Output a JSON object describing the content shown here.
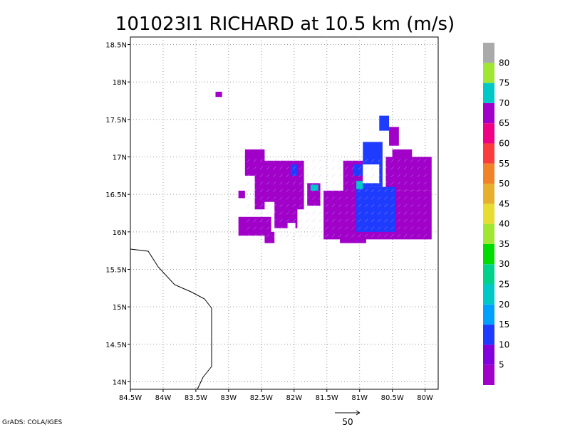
{
  "title": "101023I1 RICHARD at 10.5 km (m/s)",
  "credit": "GrADS: COLA/IGES",
  "reference_vector": {
    "label": "50"
  },
  "map": {
    "x_ticks": [
      "84.5W",
      "84W",
      "83.5W",
      "83W",
      "82.5W",
      "82W",
      "81.5W",
      "81W",
      "80.5W",
      "80W"
    ],
    "y_ticks": [
      "18.5N",
      "18N",
      "17.5N",
      "17N",
      "16.5N",
      "16N",
      "15.5N",
      "15N",
      "14.5N",
      "14N"
    ],
    "lon_range": [
      -84.5,
      -79.8
    ],
    "lat_range": [
      13.9,
      18.6
    ],
    "grid": true
  },
  "colorbar": {
    "labels": [
      "5",
      "10",
      "15",
      "20",
      "25",
      "30",
      "35",
      "40",
      "45",
      "50",
      "55",
      "60",
      "65",
      "70",
      "75",
      "80"
    ],
    "colors": [
      "#a000c8",
      "#8200dc",
      "#1e3cff",
      "#00a0ff",
      "#00c8c8",
      "#00d28c",
      "#00dc00",
      "#a0e632",
      "#e6dc32",
      "#e6af2d",
      "#f08228",
      "#fa3c3c",
      "#f00082",
      "#a000c8",
      "#00c8c8",
      "#a0e632",
      "#aaaaaa"
    ]
  },
  "chart_data": {
    "type": "heatmap",
    "title": "101023I1 RICHARD at 10.5 km (m/s)",
    "x_axis": {
      "ticks": [
        "84.5W",
        "84W",
        "83.5W",
        "83W",
        "82.5W",
        "82W",
        "81.5W",
        "81W",
        "80.5W",
        "80W"
      ]
    },
    "y_axis": {
      "ticks": [
        "18.5N",
        "18N",
        "17.5N",
        "17N",
        "16.5N",
        "16N",
        "15.5N",
        "15N",
        "14.5N",
        "14N"
      ]
    },
    "colorbar_levels": [
      5,
      10,
      15,
      20,
      25,
      30,
      35,
      40,
      45,
      50,
      55,
      60,
      65,
      70,
      75,
      80
    ],
    "regions": [
      {
        "name": "",
        "level": "5-10",
        "color": "#a000c8",
        "lon": [
          -82.8,
          -82.0
        ],
        "lat": [
          16.0,
          17.1
        ]
      },
      {
        "name": "",
        "level": "5-10",
        "color": "#a000c8",
        "lon": [
          -81.6,
          -79.9
        ],
        "lat": [
          15.9,
          17.2
        ]
      },
      {
        "name": "",
        "level": "10-15",
        "color": "#1e3cff",
        "lon": [
          -81.0,
          -80.5
        ],
        "lat": [
          16.0,
          17.2
        ]
      },
      {
        "name": "",
        "level": "20-25",
        "color": "#00c8c8",
        "lon": [
          -81.75,
          -81.65
        ],
        "lat": [
          16.5,
          16.65
        ]
      },
      {
        "name": "",
        "level": "20-25",
        "color": "#00c8c8",
        "lon": [
          -81.05,
          -80.95
        ],
        "lat": [
          16.55,
          16.7
        ]
      }
    ],
    "grid": true,
    "legend": "right colorbar"
  }
}
